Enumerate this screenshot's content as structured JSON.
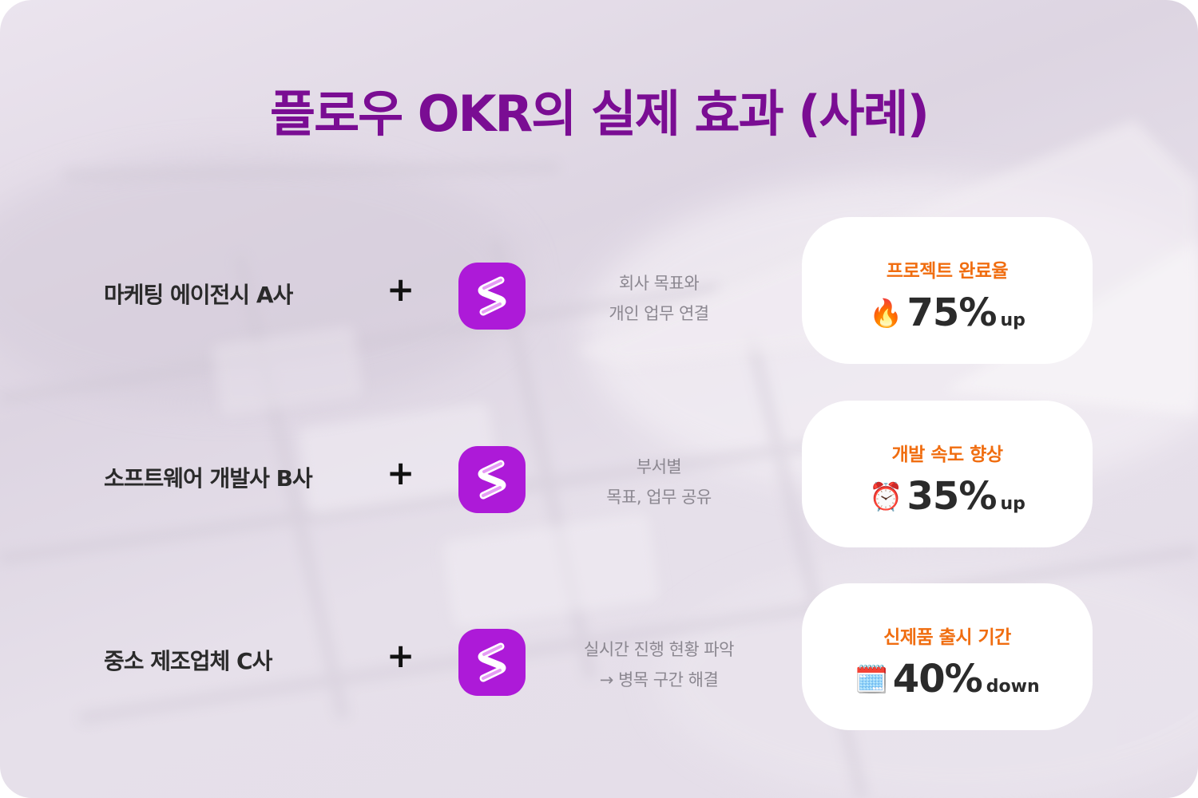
{
  "title": "플로우 OKR의 실제 효과 (사례)",
  "colors": {
    "title": "#7a0d93",
    "accent_orange": "#f06d10",
    "app_icon": "#ad1ad8",
    "card_bg": "#ffffff",
    "background": "#e4dde8"
  },
  "plus_symbol": "+",
  "app_icon_name": "flow-app-icon",
  "cases": [
    {
      "company": "마케팅 에이전시 A사",
      "desc_lines": [
        "회사 목표와",
        "개인 업무 연결"
      ],
      "result": {
        "label": "프로젝트 완료율",
        "icon": "fire-emoji",
        "emoji": "🔥",
        "value": "75%",
        "unit": "up"
      }
    },
    {
      "company": "소프트웨어 개발사 B사",
      "desc_lines": [
        "부서별",
        "목표, 업무 공유"
      ],
      "result": {
        "label": "개발 속도 향상",
        "icon": "alarm-clock-emoji",
        "emoji": "⏰",
        "value": "35%",
        "unit": "up"
      }
    },
    {
      "company": "중소 제조업체 C사",
      "desc_lines": [
        "실시간 진행 현황 파악",
        "→ 병목 구간 해결"
      ],
      "result": {
        "label": "신제품 출시 기간",
        "icon": "calendar-emoji",
        "emoji": "🗓️",
        "value": "40%",
        "unit": "down"
      }
    }
  ]
}
